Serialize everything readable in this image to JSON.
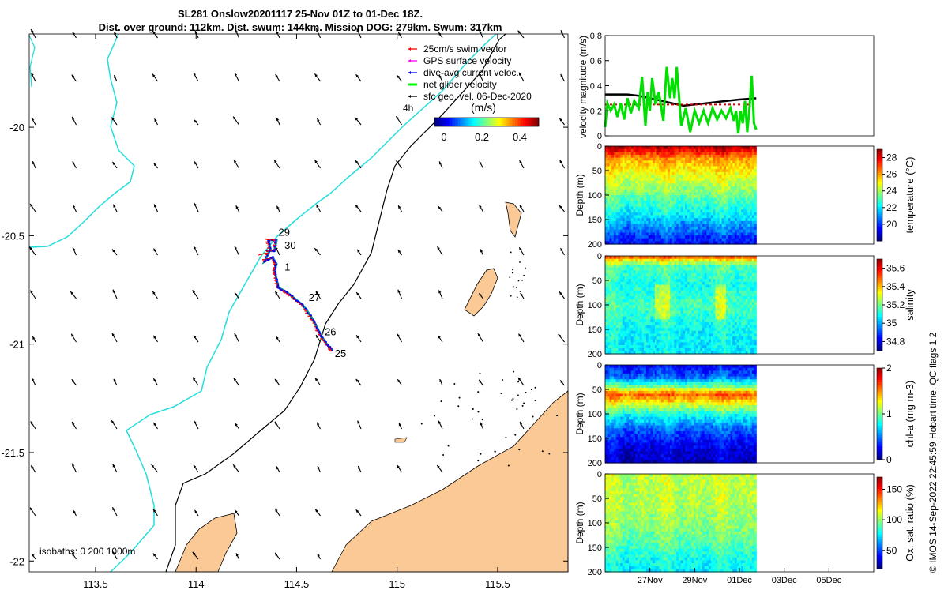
{
  "title_line1": "SL281 Onslow20201117 25-Nov 01Z to 01-Dec 18Z.",
  "title_line2": "Dist. over ground: 112km. Dist. swum: 144km. Mission DOG: 279km. Swum: 317km",
  "credit": "© IMOS 14-Sep-2022 22:45:59 Hobart time. QC flags 1  2",
  "chart_data": [
    {
      "type": "map",
      "name": "track-map",
      "x_ticks": [
        "113.5",
        "114",
        "114.5",
        "115",
        "115.5"
      ],
      "x_tick_values": [
        113.5,
        114,
        114.5,
        115,
        115.5
      ],
      "xlim": [
        113.17,
        115.85
      ],
      "y_ticks": [
        "-20",
        "-20.5",
        "-21",
        "-21.5",
        "-22"
      ],
      "y_tick_values": [
        -20,
        -20.5,
        -21,
        -21.5,
        -22
      ],
      "ylim": [
        -22.05,
        -19.57
      ],
      "legend": [
        {
          "label": "25cm/s swim vector",
          "color": "#ff0000"
        },
        {
          "label": "GPS surface velocity",
          "color": "#ff00ff"
        },
        {
          "label": "dive-avg current veloc.",
          "color": "#0000ff"
        },
        {
          "label": "net glider velocity",
          "color": "#00ff00"
        },
        {
          "label": "sfc geo. vel. 06-Dec-2020",
          "color": "#000000"
        }
      ],
      "legend_note": "4h",
      "colorbar_label": "(m/s)",
      "colorbar_ticks": [
        "0",
        "0.2",
        "0.4"
      ],
      "colorbar_range": [
        -0.05,
        0.5
      ],
      "isobath_label": "isobaths: 0   200  1000m",
      "day_labels": [
        {
          "text": "29",
          "lon": 114.41,
          "lat": -20.5
        },
        {
          "text": "30",
          "lon": 114.44,
          "lat": -20.56
        },
        {
          "text": "1",
          "lon": 114.44,
          "lat": -20.66
        },
        {
          "text": "27",
          "lon": 114.56,
          "lat": -20.8
        },
        {
          "text": "26",
          "lon": 114.64,
          "lat": -20.96
        },
        {
          "text": "25",
          "lon": 114.69,
          "lat": -21.06
        }
      ],
      "track": [
        [
          114.68,
          -21.03
        ],
        [
          114.65,
          -21.0
        ],
        [
          114.62,
          -20.96
        ],
        [
          114.6,
          -20.92
        ],
        [
          114.57,
          -20.87
        ],
        [
          114.53,
          -20.82
        ],
        [
          114.49,
          -20.79
        ],
        [
          114.45,
          -20.76
        ],
        [
          114.41,
          -20.74
        ],
        [
          114.4,
          -20.7
        ],
        [
          114.39,
          -20.66
        ],
        [
          114.4,
          -20.63
        ],
        [
          114.38,
          -20.6
        ],
        [
          114.34,
          -20.62
        ],
        [
          114.37,
          -20.56
        ],
        [
          114.36,
          -20.52
        ],
        [
          114.4,
          -20.52
        ],
        [
          114.39,
          -20.57
        ],
        [
          114.35,
          -20.57
        ]
      ],
      "current_vector": {
        "u": -0.12,
        "v": -0.2
      }
    },
    {
      "type": "line",
      "name": "velocity-panel",
      "ylabel": "velocity magnitude (m/s)",
      "ylim": [
        0,
        0.8
      ],
      "y_ticks": [
        "0",
        "0.2",
        "0.4",
        "0.6",
        "0.8"
      ],
      "series": [
        {
          "color": "#000000",
          "x": [
            0,
            0.5,
            1,
            1.5,
            2,
            2.5,
            3,
            3.5,
            4,
            4.5,
            5,
            5.5,
            6,
            6.75
          ],
          "values": [
            0.33,
            0.33,
            0.33,
            0.32,
            0.3,
            0.28,
            0.26,
            0.24,
            0.25,
            0.26,
            0.27,
            0.28,
            0.29,
            0.3
          ]
        },
        {
          "color": "#cc0000",
          "x": [
            0,
            6.75
          ],
          "values": [
            0.25,
            0.25
          ]
        },
        {
          "color": "#00e000",
          "x": [
            0,
            0.1,
            0.25,
            0.4,
            0.55,
            0.7,
            0.85,
            1,
            1.15,
            1.3,
            1.5,
            1.65,
            1.8,
            1.9,
            2,
            2.1,
            2.25,
            2.4,
            2.6,
            2.75,
            2.9,
            3,
            3.1,
            3.2,
            3.4,
            3.6,
            3.8,
            4,
            4.2,
            4.4,
            4.6,
            4.8,
            5,
            5.2,
            5.4,
            5.6,
            5.75,
            5.85,
            5.95,
            6.05,
            6.15,
            6.25,
            6.35,
            6.45,
            6.55,
            6.65,
            6.75
          ],
          "values": [
            0.07,
            0.26,
            0.2,
            0.25,
            0.15,
            0.26,
            0.13,
            0.3,
            0.18,
            0.28,
            0.22,
            0.47,
            0.08,
            0.35,
            0.2,
            0.46,
            0.25,
            0.35,
            0.12,
            0.55,
            0.3,
            0.46,
            0.3,
            0.55,
            0.08,
            0.22,
            0.03,
            0.2,
            0.1,
            0.2,
            0.1,
            0.22,
            0.13,
            0.2,
            0.14,
            0.22,
            0.12,
            0.2,
            0.02,
            0.2,
            0.1,
            0.28,
            0.03,
            0.22,
            0.48,
            0.1,
            0.05
          ]
        }
      ]
    },
    {
      "type": "heatmap",
      "name": "temperature-panel",
      "ylabel": "Depth (m)",
      "y_ticks": [
        "0",
        "50",
        "100",
        "150",
        "200"
      ],
      "colorbar_label": "temperature (°C)",
      "colorbar_ticks": [
        "20",
        "22",
        "24",
        "26",
        "28"
      ],
      "colorbar_range": [
        18,
        29
      ],
      "depth_profile": [
        [
          0,
          28.6
        ],
        [
          10,
          27.6
        ],
        [
          25,
          26
        ],
        [
          50,
          25
        ],
        [
          80,
          24
        ],
        [
          110,
          23
        ],
        [
          140,
          22
        ],
        [
          170,
          20.7
        ],
        [
          200,
          19.3
        ]
      ]
    },
    {
      "type": "heatmap",
      "name": "salinity-panel",
      "ylabel": "Depth (m)",
      "y_ticks": [
        "0",
        "50",
        "100",
        "150",
        "200"
      ],
      "colorbar_label": "salinity",
      "colorbar_ticks": [
        "34.8",
        "35",
        "35.2",
        "35.4",
        "35.6"
      ],
      "colorbar_range": [
        34.7,
        35.7
      ],
      "depth_profile": [
        [
          0,
          35.55
        ],
        [
          6,
          35.4
        ],
        [
          20,
          35.15
        ],
        [
          60,
          35.1
        ],
        [
          100,
          35.15
        ],
        [
          150,
          35.08
        ],
        [
          200,
          35.06
        ]
      ]
    },
    {
      "type": "heatmap",
      "name": "chla-panel",
      "ylabel": "Depth (m)",
      "y_ticks": [
        "0",
        "50",
        "100",
        "150",
        "200"
      ],
      "colorbar_label": "chl-a (mg m-3)",
      "colorbar_ticks": [
        "0",
        "1",
        "2"
      ],
      "colorbar_range": [
        0,
        2
      ],
      "depth_profile": [
        [
          0,
          0.25
        ],
        [
          25,
          0.45
        ],
        [
          45,
          1.0
        ],
        [
          60,
          1.6
        ],
        [
          75,
          1.3
        ],
        [
          100,
          0.8
        ],
        [
          130,
          0.45
        ],
        [
          170,
          0.2
        ],
        [
          200,
          0.12
        ]
      ]
    },
    {
      "type": "heatmap",
      "name": "oxygen-panel",
      "ylabel": "Depth (m)",
      "y_ticks": [
        "0",
        "50",
        "100",
        "150",
        "200"
      ],
      "colorbar_label": "Ox. sat. ratio (%)",
      "colorbar_ticks": [
        "50",
        "100",
        "150"
      ],
      "colorbar_range": [
        20,
        170
      ],
      "depth_profile": [
        [
          0,
          105
        ],
        [
          60,
          103
        ],
        [
          100,
          98
        ],
        [
          140,
          90
        ],
        [
          170,
          80
        ],
        [
          200,
          74
        ]
      ]
    },
    {
      "type": "axis",
      "name": "time-axis",
      "x_ticks": [
        "27Nov",
        "29Nov",
        "01Dec",
        "03Dec",
        "05Dec"
      ],
      "x_tick_days": [
        2,
        4,
        6,
        8,
        10
      ],
      "xlim_days": [
        0,
        12
      ],
      "data_days": [
        0,
        6.75
      ]
    }
  ]
}
